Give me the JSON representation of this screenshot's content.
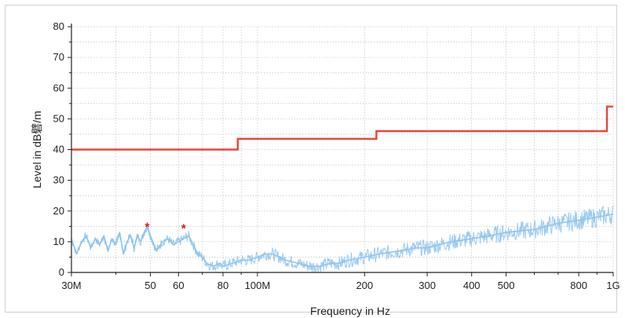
{
  "chart_data": {
    "type": "line",
    "title": "",
    "xlabel": "Frequency in Hz",
    "ylabel": "Level in dB礕/m",
    "x_scale": "log",
    "xlim": [
      30000000,
      1000000000
    ],
    "ylim": [
      0,
      80
    ],
    "grid": true,
    "y_ticks": [
      0,
      10,
      20,
      30,
      40,
      50,
      60,
      70,
      80
    ],
    "x_ticks": [
      {
        "value": 30000000,
        "label": "30M"
      },
      {
        "value": 50000000,
        "label": "50"
      },
      {
        "value": 60000000,
        "label": "60"
      },
      {
        "value": 80000000,
        "label": "80"
      },
      {
        "value": 100000000,
        "label": "100M"
      },
      {
        "value": 200000000,
        "label": "200"
      },
      {
        "value": 300000000,
        "label": "300"
      },
      {
        "value": 400000000,
        "label": "400"
      },
      {
        "value": 500000000,
        "label": "500"
      },
      {
        "value": 800000000,
        "label": "800"
      },
      {
        "value": 1000000000,
        "label": "1G"
      }
    ],
    "x_minor_ticks": [
      40000000,
      70000000,
      90000000,
      600000000,
      700000000,
      900000000
    ],
    "series": [
      {
        "kind": "limit",
        "color": "#e8453c",
        "x": [
          30000000,
          88000000,
          88000000,
          216000000,
          216000000,
          960000000,
          960000000,
          1000000000
        ],
        "y": [
          40,
          40,
          43.5,
          43.5,
          46,
          46,
          54,
          54
        ]
      },
      {
        "kind": "measurement",
        "color": "#8ec4f0",
        "x": [
          30000000,
          31000000,
          32000000,
          33000000,
          34000000,
          35000000,
          36000000,
          37000000,
          38000000,
          39000000,
          40000000,
          41000000,
          42000000,
          43000000,
          44000000,
          45000000,
          46000000,
          47000000,
          48000000,
          49000000,
          50000000,
          52000000,
          54000000,
          56000000,
          58000000,
          60000000,
          62000000,
          64000000,
          66000000,
          68000000,
          70000000,
          72000000,
          75000000,
          78000000,
          80000000,
          85000000,
          90000000,
          95000000,
          100000000,
          105000000,
          110000000,
          115000000,
          120000000,
          130000000,
          140000000,
          150000000,
          160000000,
          170000000,
          180000000,
          200000000,
          220000000,
          250000000,
          280000000,
          300000000,
          350000000,
          400000000,
          450000000,
          500000000,
          600000000,
          700000000,
          800000000,
          900000000,
          1000000000
        ],
        "y": [
          11,
          6,
          10,
          12,
          8,
          11,
          9,
          12,
          7,
          11,
          9,
          13,
          6,
          10,
          12,
          8,
          12,
          10,
          13,
          15,
          12,
          7,
          10,
          11,
          9,
          10,
          11,
          12,
          9,
          6,
          5,
          3,
          2,
          3,
          2,
          3,
          4,
          4,
          5,
          6,
          6,
          5,
          4,
          3,
          2,
          2,
          3,
          3,
          4,
          5,
          6,
          7,
          8,
          8,
          10,
          11,
          12,
          13,
          14,
          16,
          17,
          18,
          19
        ]
      },
      {
        "kind": "peaks",
        "color": "#e21b1b",
        "x": [
          49000000,
          62000000
        ],
        "y": [
          15,
          14.5
        ]
      }
    ]
  }
}
